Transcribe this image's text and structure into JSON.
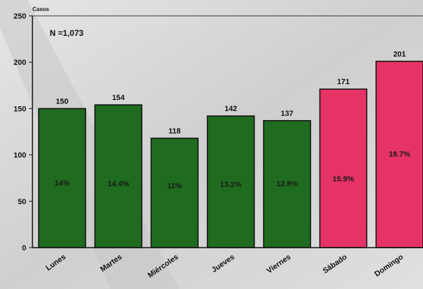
{
  "chart_data": {
    "type": "bar",
    "ylabel": "Casos",
    "annotation": "N =1,073",
    "ylim": [
      0,
      250
    ],
    "yticks": [
      0,
      50,
      100,
      150,
      200,
      250
    ],
    "categories": [
      "Lunes",
      "Martes",
      "Miércoles",
      "Jueves",
      "Viernes",
      "Sábado",
      "Domingo"
    ],
    "values": [
      150,
      154,
      118,
      142,
      137,
      171,
      201
    ],
    "value_labels": [
      "150",
      "154",
      "118",
      "142",
      "137",
      "171",
      "201"
    ],
    "percent_labels": [
      "14%",
      "14.4%",
      "11%",
      "13.2%",
      "12.8%",
      "15.9%",
      "18.7%"
    ],
    "bar_colors": [
      "#1f6b1f",
      "#1f6b1f",
      "#1f6b1f",
      "#1f6b1f",
      "#1f6b1f",
      "#e63366",
      "#e63366"
    ],
    "grid": false
  }
}
